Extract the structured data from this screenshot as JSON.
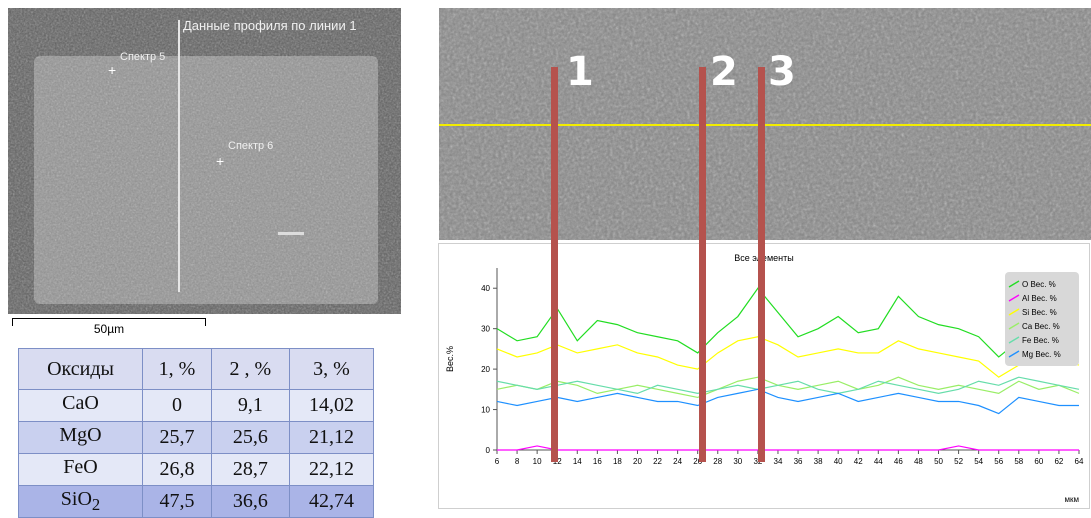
{
  "left_image": {
    "profile_label": "Данные профиля по линии 1",
    "spectra": [
      {
        "label": "Спектр 5"
      },
      {
        "label": "Спектр 6"
      }
    ],
    "scale_label": "50µm"
  },
  "oxide_table": {
    "headers": [
      "Оксиды",
      "1, %",
      "2 , %",
      "3, %"
    ],
    "rows": [
      {
        "name": "CaO",
        "sub": "",
        "values": [
          "0",
          "9,1",
          "14,02"
        ]
      },
      {
        "name": "MgO",
        "sub": "",
        "values": [
          "25,7",
          "25,6",
          "21,12"
        ]
      },
      {
        "name": "FeO",
        "sub": "",
        "values": [
          "26,8",
          "28,7",
          "22,12"
        ]
      },
      {
        "name": "SiO",
        "sub": "2",
        "values": [
          "47,5",
          "36,6",
          "42,74"
        ]
      }
    ]
  },
  "markers": [
    "1",
    "2",
    "3"
  ],
  "chart_data": {
    "type": "line",
    "title": "Все элементы",
    "ylabel": "Вес.%",
    "xunit": "мкм",
    "xlim": [
      6,
      64
    ],
    "ylim": [
      0,
      45
    ],
    "x_ticks": [
      6,
      8,
      10,
      12,
      14,
      16,
      18,
      20,
      22,
      24,
      26,
      28,
      30,
      32,
      34,
      36,
      38,
      40,
      42,
      44,
      46,
      48,
      50,
      52,
      54,
      56,
      58,
      60,
      62,
      64
    ],
    "y_ticks": [
      0,
      10,
      20,
      30,
      40
    ],
    "x": [
      6,
      8,
      10,
      12,
      14,
      16,
      18,
      20,
      22,
      24,
      26,
      28,
      30,
      32,
      34,
      36,
      38,
      40,
      42,
      44,
      46,
      48,
      50,
      52,
      54,
      56,
      58,
      60,
      62,
      64
    ],
    "series": [
      {
        "name": "O Вес. %",
        "color": "#22dd22",
        "values": [
          30,
          27,
          28,
          35,
          27,
          32,
          31,
          29,
          28,
          27,
          24,
          29,
          33,
          40,
          34,
          28,
          30,
          33,
          29,
          30,
          38,
          33,
          31,
          30,
          28,
          23,
          27,
          31,
          28,
          27
        ]
      },
      {
        "name": "Al Вес. %",
        "color": "#ff00ff",
        "values": [
          0,
          0,
          1,
          0,
          0,
          0,
          0,
          0,
          0,
          0,
          0,
          0,
          0,
          0,
          0,
          0,
          0,
          0,
          0,
          0,
          0,
          0,
          0,
          1,
          0,
          0,
          0,
          0,
          0,
          0
        ]
      },
      {
        "name": "Si Вес. %",
        "color": "#ffff00",
        "values": [
          25,
          23,
          24,
          26,
          24,
          25,
          26,
          24,
          23,
          21,
          20,
          24,
          27,
          28,
          26,
          23,
          24,
          25,
          24,
          24,
          27,
          25,
          24,
          23,
          22,
          18,
          21,
          24,
          22,
          21
        ]
      },
      {
        "name": "Ca Вес. %",
        "color": "#99ee66",
        "values": [
          15,
          16,
          15,
          17,
          16,
          14,
          15,
          16,
          15,
          14,
          13,
          15,
          17,
          18,
          16,
          15,
          16,
          17,
          15,
          16,
          18,
          16,
          15,
          16,
          15,
          14,
          17,
          15,
          16,
          14
        ]
      },
      {
        "name": "Fe Вес. %",
        "color": "#66ddaa",
        "values": [
          17,
          16,
          15,
          16,
          17,
          16,
          15,
          14,
          16,
          15,
          14,
          15,
          16,
          15,
          16,
          17,
          15,
          14,
          15,
          17,
          16,
          15,
          14,
          15,
          17,
          16,
          18,
          17,
          16,
          15
        ]
      },
      {
        "name": "Mg Вес. %",
        "color": "#1e90ff",
        "values": [
          12,
          11,
          12,
          13,
          12,
          13,
          14,
          13,
          12,
          12,
          11,
          13,
          14,
          15,
          13,
          12,
          13,
          14,
          12,
          13,
          14,
          13,
          12,
          12,
          11,
          9,
          13,
          12,
          11,
          11
        ]
      }
    ]
  }
}
